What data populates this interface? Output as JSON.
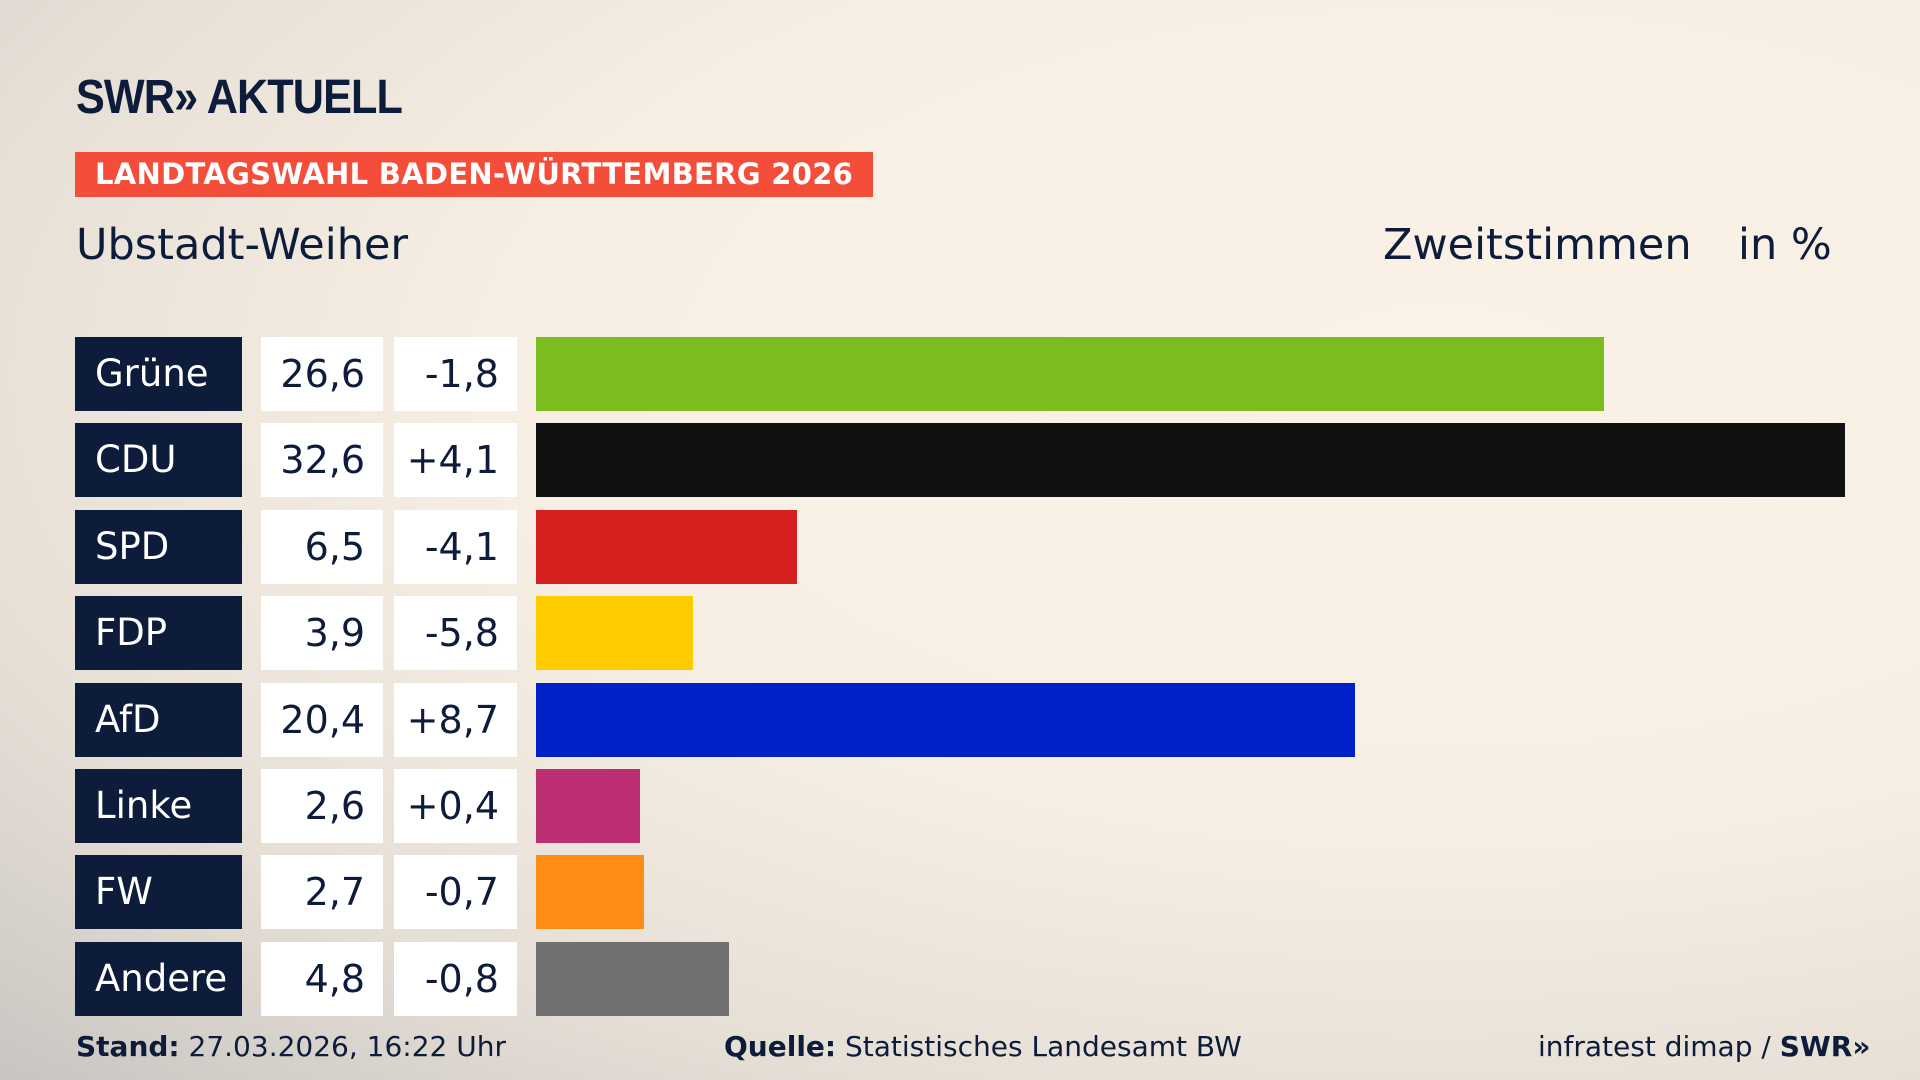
{
  "header": {
    "logo": "SWR» AKTUELL",
    "banner": "LANDTAGSWAHL BADEN-WÜRTTEMBERG 2026",
    "location": "Ubstadt-Weiher",
    "vote_type": "Zweitstimmen",
    "unit": "in %"
  },
  "chart_data": {
    "type": "bar",
    "orientation": "horizontal",
    "categories": [
      "Grüne",
      "CDU",
      "SPD",
      "FDP",
      "AfD",
      "Linke",
      "FW",
      "Andere"
    ],
    "values": [
      26.6,
      32.6,
      6.5,
      3.9,
      20.4,
      2.6,
      2.7,
      4.8
    ],
    "value_labels": [
      "26,6",
      "32,6",
      "6,5",
      "3,9",
      "20,4",
      "2,6",
      "2,7",
      "4,8"
    ],
    "changes": [
      -1.8,
      4.1,
      -4.1,
      -5.8,
      8.7,
      0.4,
      -0.7,
      -0.8
    ],
    "change_labels": [
      "-1,8",
      "+4,1",
      "-4,1",
      "-5,8",
      "+8,7",
      "+0,4",
      "-0,7",
      "-0,8"
    ],
    "colors": [
      "#7bbd1e",
      "#111111",
      "#d61f1f",
      "#ffcc00",
      "#0021c8",
      "#bd2f73",
      "#ff8c15",
      "#707070"
    ],
    "xlim": [
      0,
      32.6
    ],
    "grid": false
  },
  "footer": {
    "stand_label": "Stand:",
    "stand_value": "27.03.2026, 16:22 Uhr",
    "source_label": "Quelle:",
    "source_value": "Statistisches Landesamt BW",
    "credit": "infratest dimap / ",
    "credit_logo": "SWR»"
  }
}
